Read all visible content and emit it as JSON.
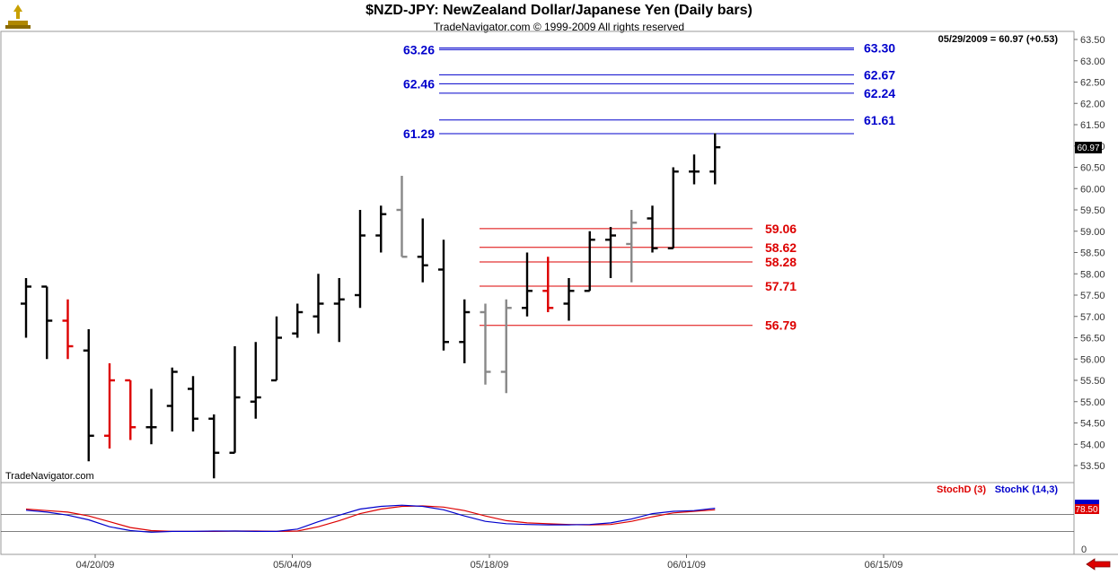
{
  "header": {
    "title": "$NZD-JPY:  NewZealand Dollar/Japanese Yen  (Daily bars)",
    "subtitle": "TradeNavigator.com © 1999-2009 All rights reserved"
  },
  "watermark": "TradeNavigator.com",
  "info_readout": "05/29/2009 = 60.97 (+0.53)",
  "last_price_label": "60.97",
  "colors": {
    "blue": "#0000cc",
    "red": "#dd0000",
    "black": "#000000",
    "gray": "#888888"
  },
  "chart_data": {
    "type": "ohlc",
    "ylim": [
      53.1,
      63.6
    ],
    "y_ticks": [
      "53.50",
      "54.00",
      "54.50",
      "55.00",
      "55.50",
      "56.00",
      "56.50",
      "57.00",
      "57.50",
      "58.00",
      "58.50",
      "59.00",
      "59.50",
      "60.00",
      "60.50",
      "61.00",
      "61.50",
      "62.00",
      "62.50",
      "63.00",
      "63.50"
    ],
    "x_tick_labels": [
      "04/20/09",
      "05/04/09",
      "05/18/09",
      "06/01/09",
      "06/15/09"
    ],
    "bars": [
      {
        "o": 57.3,
        "h": 57.9,
        "l": 56.5,
        "c": 57.7,
        "color": "black"
      },
      {
        "o": 57.7,
        "h": 57.7,
        "l": 56.0,
        "c": 56.9,
        "color": "black"
      },
      {
        "o": 56.9,
        "h": 57.4,
        "l": 56.0,
        "c": 56.3,
        "color": "red"
      },
      {
        "o": 56.2,
        "h": 56.7,
        "l": 53.6,
        "c": 54.2,
        "color": "black"
      },
      {
        "o": 54.2,
        "h": 55.9,
        "l": 53.9,
        "c": 55.5,
        "color": "red"
      },
      {
        "o": 55.5,
        "h": 55.5,
        "l": 54.1,
        "c": 54.4,
        "color": "red"
      },
      {
        "o": 54.4,
        "h": 55.3,
        "l": 54.0,
        "c": 54.4,
        "color": "black"
      },
      {
        "o": 54.9,
        "h": 55.8,
        "l": 54.3,
        "c": 55.7,
        "color": "black"
      },
      {
        "o": 55.3,
        "h": 55.6,
        "l": 54.3,
        "c": 54.6,
        "color": "black"
      },
      {
        "o": 54.6,
        "h": 54.7,
        "l": 53.2,
        "c": 53.8,
        "color": "black"
      },
      {
        "o": 53.8,
        "h": 56.3,
        "l": 53.8,
        "c": 55.1,
        "color": "black"
      },
      {
        "o": 55.0,
        "h": 56.4,
        "l": 54.6,
        "c": 55.1,
        "color": "black"
      },
      {
        "o": 55.5,
        "h": 57.0,
        "l": 55.5,
        "c": 56.5,
        "color": "black"
      },
      {
        "o": 56.6,
        "h": 57.3,
        "l": 56.5,
        "c": 57.1,
        "color": "black"
      },
      {
        "o": 57.0,
        "h": 58.0,
        "l": 56.6,
        "c": 57.3,
        "color": "black"
      },
      {
        "o": 57.3,
        "h": 57.9,
        "l": 56.4,
        "c": 57.4,
        "color": "black"
      },
      {
        "o": 57.5,
        "h": 59.5,
        "l": 57.2,
        "c": 58.9,
        "color": "black"
      },
      {
        "o": 58.9,
        "h": 59.6,
        "l": 58.5,
        "c": 59.4,
        "color": "black"
      },
      {
        "o": 59.5,
        "h": 60.3,
        "l": 58.4,
        "c": 58.4,
        "color": "gray"
      },
      {
        "o": 58.4,
        "h": 59.3,
        "l": 57.8,
        "c": 58.2,
        "color": "black"
      },
      {
        "o": 58.1,
        "h": 58.8,
        "l": 56.2,
        "c": 56.4,
        "color": "black"
      },
      {
        "o": 56.4,
        "h": 57.4,
        "l": 55.9,
        "c": 57.1,
        "color": "black"
      },
      {
        "o": 57.1,
        "h": 57.3,
        "l": 55.4,
        "c": 55.7,
        "color": "gray"
      },
      {
        "o": 55.7,
        "h": 57.4,
        "l": 55.2,
        "c": 57.2,
        "color": "gray"
      },
      {
        "o": 57.2,
        "h": 58.5,
        "l": 57.0,
        "c": 57.6,
        "color": "black"
      },
      {
        "o": 57.6,
        "h": 58.4,
        "l": 57.1,
        "c": 57.2,
        "color": "red"
      },
      {
        "o": 57.3,
        "h": 57.9,
        "l": 56.9,
        "c": 57.6,
        "color": "black"
      },
      {
        "o": 57.6,
        "h": 59.0,
        "l": 57.6,
        "c": 58.8,
        "color": "black"
      },
      {
        "o": 58.8,
        "h": 59.1,
        "l": 57.9,
        "c": 58.9,
        "color": "black"
      },
      {
        "o": 58.7,
        "h": 59.5,
        "l": 57.8,
        "c": 59.2,
        "color": "gray"
      },
      {
        "o": 59.3,
        "h": 59.6,
        "l": 58.5,
        "c": 58.6,
        "color": "black"
      },
      {
        "o": 58.6,
        "h": 60.5,
        "l": 58.6,
        "c": 60.4,
        "color": "black"
      },
      {
        "o": 60.4,
        "h": 60.8,
        "l": 60.1,
        "c": 60.4,
        "color": "black"
      },
      {
        "o": 60.4,
        "h": 61.3,
        "l": 60.1,
        "c": 60.97,
        "color": "black"
      }
    ],
    "levels": [
      {
        "value": 63.3,
        "label": "63.30",
        "side": "right",
        "color": "blue"
      },
      {
        "value": 63.26,
        "label": "63.26",
        "side": "left",
        "color": "blue"
      },
      {
        "value": 62.67,
        "label": "62.67",
        "side": "right",
        "color": "blue"
      },
      {
        "value": 62.46,
        "label": "62.46",
        "side": "left",
        "color": "blue"
      },
      {
        "value": 62.24,
        "label": "62.24",
        "side": "right",
        "color": "blue"
      },
      {
        "value": 61.61,
        "label": "61.61",
        "side": "right",
        "color": "blue"
      },
      {
        "value": 61.29,
        "label": "61.29",
        "side": "left",
        "color": "blue"
      },
      {
        "value": 59.06,
        "label": "59.06",
        "side": "right",
        "color": "red"
      },
      {
        "value": 58.62,
        "label": "58.62",
        "side": "right",
        "color": "red"
      },
      {
        "value": 58.28,
        "label": "58.28",
        "side": "right",
        "color": "red"
      },
      {
        "value": 57.71,
        "label": "57.71",
        "side": "right",
        "color": "red"
      },
      {
        "value": 56.79,
        "label": "56.79",
        "side": "right",
        "color": "red"
      }
    ],
    "stochastic": {
      "d_label": "StochD (3)",
      "k_label": "StochK (14,3)",
      "value_label": "78.50",
      "bottom_tick": "0",
      "ylim": [
        0,
        100
      ],
      "ref_levels": [
        80,
        20
      ],
      "k_values": [
        75,
        70,
        62,
        50,
        32,
        22,
        18,
        20,
        20,
        21,
        21,
        20,
        20,
        26,
        45,
        62,
        78,
        85,
        88,
        85,
        76,
        60,
        46,
        40,
        38,
        37,
        37,
        38,
        42,
        52,
        66,
        72,
        74,
        80
      ],
      "d_values": [
        78,
        74,
        70,
        60,
        45,
        30,
        22,
        20,
        20,
        20,
        21,
        21,
        20,
        21,
        32,
        48,
        66,
        78,
        85,
        86,
        83,
        74,
        60,
        48,
        42,
        40,
        38,
        37,
        38,
        46,
        58,
        68,
        72,
        76
      ]
    }
  }
}
